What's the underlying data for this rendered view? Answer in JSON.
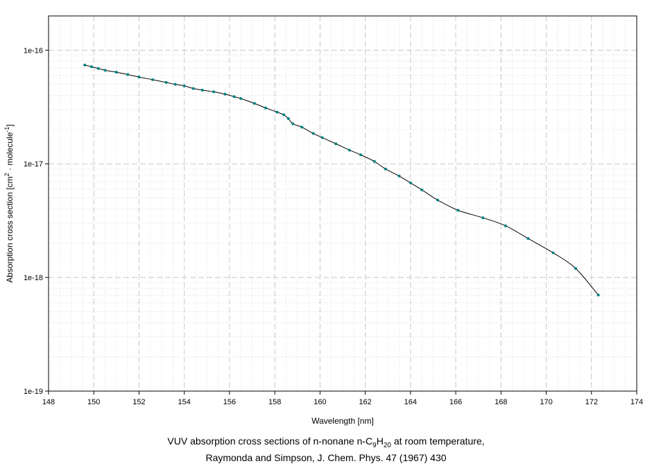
{
  "chart_data": {
    "type": "line",
    "xlabel": "Wavelength [nm]",
    "ylabel_parts": [
      "Absorption cross section [cm",
      "2",
      " · molecule",
      "-1",
      "]"
    ],
    "xlim": [
      148,
      174
    ],
    "ylim": [
      1e-19,
      2e-16
    ],
    "yscale": "log",
    "grid": true,
    "x_ticks": [
      "148",
      "150",
      "152",
      "154",
      "156",
      "158",
      "160",
      "162",
      "164",
      "166",
      "168",
      "170",
      "172",
      "174"
    ],
    "y_ticks": [
      "1e-19",
      "1e-18",
      "1e-17",
      "1e-16"
    ],
    "series": [
      {
        "color": "#008080",
        "x": [
          149.6,
          149.9,
          150.2,
          150.5,
          151.0,
          151.5,
          152.0,
          152.6,
          153.2,
          153.6,
          154.0,
          154.4,
          154.8,
          155.3,
          155.8,
          156.2,
          156.5,
          157.1,
          157.6,
          158.1,
          158.4,
          158.6,
          158.8,
          159.2,
          159.7,
          160.1,
          160.7,
          161.3,
          161.8,
          162.4,
          162.9,
          163.5,
          164.0,
          164.5,
          165.2,
          166.1,
          167.2,
          168.2,
          169.2,
          170.3,
          171.3,
          172.3
        ],
        "y": [
          7.4e-17,
          7.15e-17,
          6.9e-17,
          6.65e-17,
          6.4e-17,
          6.1e-17,
          5.8e-17,
          5.5e-17,
          5.2e-17,
          5e-17,
          4.85e-17,
          4.6e-17,
          4.45e-17,
          4.3e-17,
          4.1e-17,
          3.9e-17,
          3.75e-17,
          3.4e-17,
          3.1e-17,
          2.85e-17,
          2.7e-17,
          2.5e-17,
          2.25e-17,
          2.1e-17,
          1.85e-17,
          1.7e-17,
          1.5e-17,
          1.32e-17,
          1.2e-17,
          1.05e-17,
          9e-18,
          7.8e-18,
          6.8e-18,
          5.9e-18,
          4.8e-18,
          3.9e-18,
          3.35e-18,
          2.85e-18,
          2.2e-18,
          1.65e-18,
          1.2e-18,
          7e-19
        ]
      }
    ]
  },
  "caption": {
    "line1_pre": "VUV absorption cross sections of n-nonane n-C",
    "line1_sub1": "9",
    "line1_mid": "H",
    "line1_sub2": "20",
    "line1_post": " at room temperature,",
    "line2": "Raymonda and Simpson, J. Chem. Phys. 47 (1967) 430"
  }
}
